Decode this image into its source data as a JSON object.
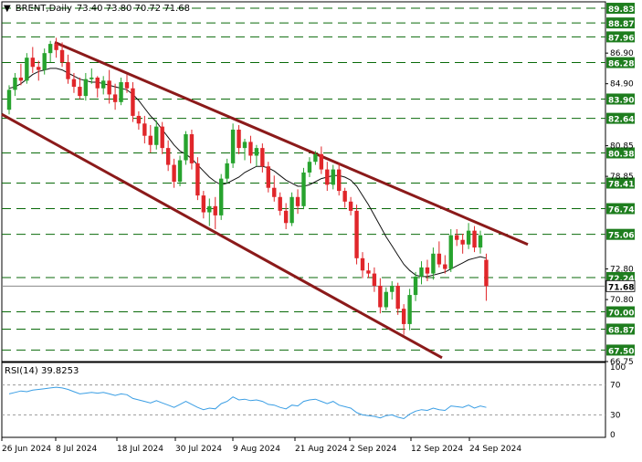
{
  "header": {
    "arrow": "▼",
    "symbol": "BRENT,Daily",
    "ohlc": "73.40 73.80 70.72 71.68"
  },
  "chart_data": {
    "type": "candlestick",
    "symbol": "BRENT",
    "timeframe": "Daily",
    "last_price": "71.68",
    "ylim": [
      66.75,
      90.25
    ],
    "y_ticks": [
      "86.90",
      "84.90",
      "80.85",
      "78.85",
      "72.80",
      "70.80",
      "66.75"
    ],
    "horizontal_levels": [
      "89.83",
      "88.87",
      "87.96",
      "86.28",
      "83.90",
      "82.64",
      "80.38",
      "78.41",
      "76.74",
      "75.06",
      "72.24",
      "70.00",
      "68.87",
      "67.50"
    ],
    "x_labels": [
      "26 Jun 2024",
      "8 Jul 2024",
      "18 Jul 2024",
      "30 Jul 2024",
      "9 Aug 2024",
      "21 Aug 2024",
      "2 Sep 2024",
      "12 Sep 2024",
      "24 Sep 2024"
    ],
    "candles": [
      [
        83.2,
        84.8,
        82.9,
        84.5
      ],
      [
        84.5,
        85.6,
        84.1,
        85.3
      ],
      [
        85.3,
        86.2,
        84.8,
        85.1
      ],
      [
        85.1,
        86.9,
        84.9,
        86.6
      ],
      [
        86.6,
        87.3,
        85.6,
        86.0
      ],
      [
        86.0,
        86.4,
        85.1,
        85.8
      ],
      [
        85.8,
        87.2,
        85.5,
        86.9
      ],
      [
        86.9,
        87.7,
        86.3,
        87.5
      ],
      [
        87.5,
        87.9,
        86.6,
        87.1
      ],
      [
        87.1,
        87.6,
        86.0,
        86.3
      ],
      [
        86.3,
        86.8,
        84.9,
        85.2
      ],
      [
        85.2,
        85.6,
        84.3,
        84.7
      ],
      [
        84.7,
        85.3,
        83.9,
        84.1
      ],
      [
        84.1,
        85.6,
        83.8,
        85.2
      ],
      [
        85.2,
        85.9,
        84.9,
        85.3
      ],
      [
        85.3,
        85.4,
        84.0,
        84.6
      ],
      [
        84.6,
        85.4,
        84.2,
        85.1
      ],
      [
        85.1,
        85.8,
        83.6,
        84.2
      ],
      [
        84.2,
        84.9,
        83.2,
        83.7
      ],
      [
        83.7,
        85.3,
        83.5,
        85.0
      ],
      [
        85.0,
        85.5,
        84.3,
        84.6
      ],
      [
        84.6,
        85.0,
        82.4,
        82.8
      ],
      [
        82.8,
        83.1,
        81.9,
        82.3
      ],
      [
        82.3,
        82.8,
        81.0,
        81.5
      ],
      [
        81.5,
        82.2,
        80.4,
        80.9
      ],
      [
        80.9,
        82.5,
        80.6,
        82.1
      ],
      [
        82.1,
        82.4,
        80.3,
        80.7
      ],
      [
        80.7,
        81.2,
        79.2,
        79.6
      ],
      [
        79.6,
        80.0,
        78.1,
        78.5
      ],
      [
        78.5,
        80.2,
        78.2,
        79.9
      ],
      [
        79.9,
        81.8,
        79.6,
        81.6
      ],
      [
        81.6,
        81.9,
        79.3,
        79.7
      ],
      [
        79.7,
        80.1,
        77.3,
        77.6
      ],
      [
        77.6,
        77.9,
        76.1,
        76.5
      ],
      [
        76.5,
        77.4,
        75.6,
        76.9
      ],
      [
        76.9,
        77.5,
        75.4,
        76.3
      ],
      [
        76.3,
        79.0,
        76.0,
        78.7
      ],
      [
        78.7,
        80.0,
        78.4,
        79.7
      ],
      [
        79.7,
        82.3,
        79.4,
        81.9
      ],
      [
        81.9,
        82.2,
        80.3,
        80.7
      ],
      [
        80.7,
        81.3,
        79.9,
        81.1
      ],
      [
        81.1,
        81.5,
        79.7,
        80.2
      ],
      [
        80.2,
        80.9,
        79.5,
        80.7
      ],
      [
        80.7,
        81.0,
        79.1,
        79.5
      ],
      [
        79.5,
        79.8,
        77.8,
        78.1
      ],
      [
        78.1,
        78.9,
        77.2,
        77.5
      ],
      [
        77.5,
        77.8,
        76.3,
        76.6
      ],
      [
        76.6,
        77.1,
        75.4,
        75.8
      ],
      [
        75.8,
        77.8,
        75.6,
        77.5
      ],
      [
        77.5,
        78.0,
        76.4,
        76.9
      ],
      [
        76.9,
        79.4,
        76.7,
        79.1
      ],
      [
        79.1,
        80.1,
        78.8,
        79.8
      ],
      [
        79.8,
        80.5,
        79.6,
        80.3
      ],
      [
        80.3,
        80.8,
        79.0,
        79.3
      ],
      [
        79.3,
        79.8,
        77.9,
        78.3
      ],
      [
        78.3,
        79.6,
        78.0,
        79.3
      ],
      [
        79.3,
        79.7,
        77.6,
        77.9
      ],
      [
        77.9,
        78.1,
        76.8,
        77.2
      ],
      [
        77.2,
        77.5,
        76.3,
        76.6
      ],
      [
        76.6,
        77.0,
        73.1,
        73.5
      ],
      [
        73.5,
        73.9,
        72.2,
        72.7
      ],
      [
        72.7,
        73.2,
        72.2,
        72.5
      ],
      [
        72.5,
        72.9,
        71.3,
        71.7
      ],
      [
        71.7,
        72.2,
        69.9,
        70.3
      ],
      [
        70.3,
        71.6,
        70.1,
        71.3
      ],
      [
        71.3,
        72.0,
        70.8,
        71.7
      ],
      [
        71.7,
        71.9,
        69.8,
        70.2
      ],
      [
        70.2,
        70.5,
        68.5,
        69.2
      ],
      [
        69.2,
        71.5,
        68.8,
        71.1
      ],
      [
        71.1,
        72.6,
        70.7,
        72.3
      ],
      [
        72.3,
        73.3,
        71.8,
        72.9
      ],
      [
        72.9,
        73.4,
        72.0,
        72.5
      ],
      [
        72.5,
        74.2,
        72.1,
        73.8
      ],
      [
        73.8,
        74.6,
        72.9,
        73.1
      ],
      [
        73.1,
        73.7,
        72.5,
        72.8
      ],
      [
        72.8,
        75.4,
        72.6,
        75.0
      ],
      [
        75.0,
        75.4,
        74.3,
        74.7
      ],
      [
        74.7,
        75.1,
        73.8,
        74.4
      ],
      [
        74.4,
        75.8,
        74.1,
        75.3
      ],
      [
        75.3,
        75.6,
        73.9,
        74.2
      ],
      [
        74.2,
        75.3,
        73.8,
        75.0
      ],
      [
        73.4,
        73.8,
        70.72,
        71.68
      ]
    ],
    "moving_average": [
      84.6,
      84.7,
      84.9,
      85.2,
      85.5,
      85.7,
      85.8,
      85.9,
      85.9,
      85.8,
      85.6,
      85.4,
      85.2,
      85.1,
      85.0,
      85.0,
      84.9,
      84.8,
      84.7,
      84.6,
      84.5,
      84.2,
      83.8,
      83.3,
      82.8,
      82.4,
      81.9,
      81.4,
      80.9,
      80.5,
      80.3,
      80.0,
      79.6,
      79.2,
      78.8,
      78.5,
      78.3,
      78.4,
      78.6,
      78.8,
      79.1,
      79.3,
      79.5,
      79.5,
      79.4,
      79.2,
      78.9,
      78.6,
      78.4,
      78.2,
      78.2,
      78.3,
      78.5,
      78.7,
      78.8,
      78.9,
      78.9,
      78.8,
      78.6,
      78.2,
      77.6,
      77.0,
      76.3,
      75.6,
      74.9,
      74.3,
      73.7,
      73.1,
      72.7,
      72.4,
      72.3,
      72.3,
      72.4,
      72.5,
      72.6,
      72.8,
      73.0,
      73.2,
      73.4,
      73.5,
      73.6,
      73.5
    ],
    "rsi": {
      "label": "RSI(14) 39.8253",
      "ylim": [
        0,
        100
      ],
      "y_ticks": [
        "100",
        "70",
        "30",
        "0"
      ],
      "levels": [
        70,
        30
      ],
      "values": [
        58,
        60,
        62,
        61,
        63,
        64,
        65,
        66,
        67,
        66,
        64,
        61,
        58,
        59,
        60,
        59,
        60,
        58,
        56,
        58,
        57,
        52,
        50,
        48,
        46,
        49,
        46,
        43,
        40,
        44,
        48,
        44,
        40,
        37,
        39,
        38,
        45,
        48,
        54,
        50,
        51,
        49,
        50,
        48,
        44,
        43,
        40,
        38,
        43,
        42,
        48,
        50,
        51,
        48,
        45,
        48,
        43,
        41,
        39,
        33,
        30,
        29,
        28,
        26,
        29,
        30,
        27,
        25,
        31,
        35,
        37,
        36,
        39,
        37,
        36,
        42,
        41,
        40,
        43,
        39,
        42,
        40
      ]
    },
    "trendlines": [
      {
        "from": [
          "8 Jul 2024",
          87.6
        ],
        "to": [
          "Sep 2024",
          74.4
        ]
      },
      {
        "from": [
          "26 Jun 2024",
          82.9
        ],
        "to": [
          "Sep 2024",
          67.0
        ]
      }
    ],
    "colors": {
      "bull": "#27a32e",
      "bear": "#e0262a",
      "trend": "#8b1a1a",
      "ma": "#111111",
      "rsi": "#3a9ee4"
    }
  }
}
